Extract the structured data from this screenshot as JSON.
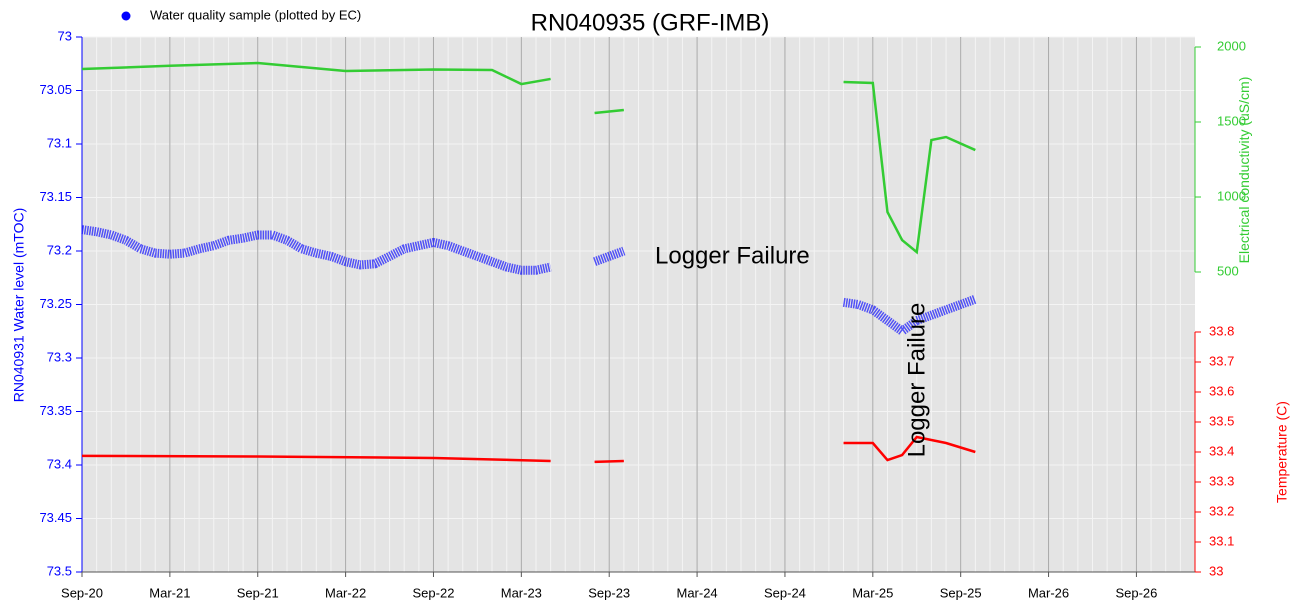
{
  "chart_data": {
    "type": "line",
    "title": "RN040935 (GRF-IMB)",
    "legend": {
      "label": "Water quality sample (plotted by EC)",
      "color": "#0000ff",
      "position": "top-left"
    },
    "annotations": [
      {
        "text": "Logger Failure",
        "orientation": "horizontal"
      },
      {
        "text": "Logger Failure",
        "orientation": "vertical"
      }
    ],
    "ylabel": "RN040931 Water level (mTOC)",
    "y2label": "Electrical conductivity (uS/cm)",
    "y3label": "Temperature (C)",
    "xlim": [
      "Sep-20",
      "Jan-27"
    ],
    "xticks": [
      "Sep-20",
      "Mar-21",
      "Sep-21",
      "Mar-22",
      "Sep-22",
      "Mar-23",
      "Sep-23",
      "Mar-24",
      "Sep-24",
      "Mar-25",
      "Sep-25",
      "Mar-26",
      "Sep-26"
    ],
    "ylim": [
      73,
      73.5
    ],
    "yinverted": true,
    "yticks": [
      73,
      73.05,
      73.1,
      73.15,
      73.2,
      73.25,
      73.3,
      73.35,
      73.4,
      73.45,
      73.5
    ],
    "y2lim": [
      2000,
      500
    ],
    "y2ticks": [
      500,
      1000,
      1500,
      2000
    ],
    "y3lim": [
      33.8,
      33
    ],
    "y3ticks": [
      33,
      33.1,
      33.2,
      33.3,
      33.4,
      33.5,
      33.6,
      33.7,
      33.8
    ],
    "grid": true,
    "series": [
      {
        "name": "RN040931 Water level",
        "color": "#0000ff",
        "axis": "y",
        "x": [
          "Sep-20",
          "Oct-20",
          "Nov-20",
          "Dec-20",
          "Jan-21",
          "Feb-21",
          "Mar-21",
          "Apr-21",
          "May-21",
          "Jun-21",
          "Jul-21",
          "Aug-21",
          "Sep-21",
          "Oct-21",
          "Nov-21",
          "Dec-21",
          "Jan-22",
          "Feb-22",
          "Mar-22",
          "Apr-22",
          "May-22",
          "Jun-22",
          "Jul-22",
          "Aug-22",
          "Sep-22",
          "Oct-22",
          "Nov-22",
          "Dec-22",
          "Jan-23",
          "Feb-23",
          "Mar-23",
          "Apr-23",
          "May-23",
          "Jul-23",
          "Aug-23",
          "Sep-23",
          "Oct-23",
          "Dec-23",
          "Jan-25",
          "Feb-25",
          "Mar-25",
          "Apr-25",
          "May-25",
          "Jun-25",
          "Jul-25",
          "Aug-25",
          "Sep-25",
          "Oct-25"
        ],
        "values": [
          73.18,
          73.182,
          73.185,
          73.19,
          73.198,
          73.202,
          73.203,
          73.202,
          73.198,
          73.195,
          73.19,
          73.188,
          73.185,
          73.185,
          73.19,
          73.198,
          73.202,
          73.205,
          73.21,
          73.213,
          73.212,
          73.205,
          73.198,
          73.195,
          73.192,
          73.195,
          73.2,
          73.205,
          73.21,
          73.215,
          73.218,
          73.218,
          73.215,
          null,
          73.21,
          73.205,
          73.2,
          null,
          73.248,
          73.25,
          73.255,
          73.265,
          73.275,
          73.265,
          73.26,
          73.255,
          73.25,
          73.245
        ]
      },
      {
        "name": "Electrical conductivity",
        "color": "#33cc33",
        "axis": "y2",
        "x": [
          "Sep-20",
          "Mar-21",
          "Sep-21",
          "Mar-22",
          "Sep-22",
          "Jan-23",
          "Mar-23",
          "May-23",
          "Jul-23",
          "Aug-23",
          "Oct-23",
          "Dec-23",
          "Jan-25",
          "Mar-25",
          "Apr-25",
          "May-25",
          "Jun-25",
          "Jul-25",
          "Aug-25",
          "Oct-25"
        ],
        "values": [
          1853,
          1875,
          1893,
          1840,
          1850,
          1847,
          1753,
          1787,
          null,
          1560,
          1580,
          null,
          1767,
          1760,
          900,
          713,
          633,
          1380,
          1400,
          1313
        ]
      },
      {
        "name": "Temperature",
        "color": "#ff0000",
        "axis": "y3",
        "x": [
          "Sep-20",
          "Sep-21",
          "Sep-22",
          "May-23",
          "Jul-23",
          "Aug-23",
          "Oct-23",
          "Dec-23",
          "Jan-25",
          "Mar-25",
          "Apr-25",
          "May-25",
          "Jun-25",
          "Aug-25",
          "Oct-25"
        ],
        "values": [
          33.387,
          33.385,
          33.38,
          33.37,
          null,
          33.367,
          33.37,
          null,
          33.43,
          33.43,
          33.373,
          33.39,
          33.45,
          33.43,
          33.4
        ]
      }
    ]
  }
}
